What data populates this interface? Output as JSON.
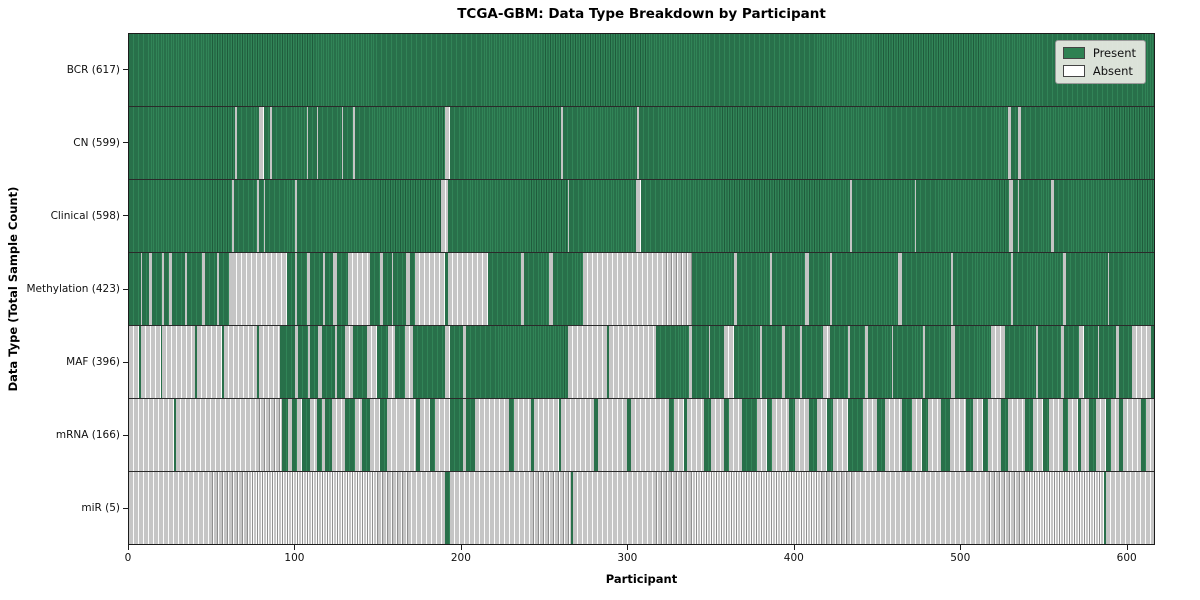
{
  "title": "TCGA-GBM: Data Type Breakdown by Participant",
  "axes": {
    "xlabel": "Participant",
    "ylabel": "Data Type (Total Sample Count)"
  },
  "legend": {
    "present_label": "Present",
    "absent_label": "Absent"
  },
  "colors": {
    "present_fill": "#318457",
    "present_stripe": "#1f5c3c",
    "absent_fill": "#fbfbfb",
    "absent_stripe": "#8f8f8f",
    "legend_bg": "#eaece5",
    "plot_border": "#1c1c1c"
  },
  "chart_data": {
    "type": "heatmap",
    "title": "TCGA-GBM: Data Type Breakdown by Participant",
    "xlabel": "Participant",
    "ylabel": "Data Type (Total Sample Count)",
    "xlim": [
      0,
      617
    ],
    "x_ticks": [
      0,
      100,
      200,
      300,
      400,
      500,
      600
    ],
    "n_participants": 617,
    "grid": false,
    "legend": [
      "Present",
      "Absent"
    ],
    "legend_position": "upper right",
    "cell_states": {
      "P": "Present",
      "A": "Absent"
    },
    "run_format": "[length, P|A] left-to-right per participant (approximate run-length encoding)",
    "rows": [
      {
        "label": "BCR (617)",
        "data_type": "BCR",
        "present_count": 617,
        "runs": [
          [
            617,
            "P"
          ]
        ]
      },
      {
        "label": "CN (599)",
        "data_type": "CN",
        "present_count": 599,
        "runs": [
          [
            64,
            "P"
          ],
          [
            1,
            "A"
          ],
          [
            13,
            "P"
          ],
          [
            3,
            "A"
          ],
          [
            4,
            "P"
          ],
          [
            1,
            "A"
          ],
          [
            21,
            "P"
          ],
          [
            1,
            "A"
          ],
          [
            5,
            "P"
          ],
          [
            1,
            "A"
          ],
          [
            14,
            "P"
          ],
          [
            1,
            "A"
          ],
          [
            6,
            "P"
          ],
          [
            1,
            "A"
          ],
          [
            54,
            "P"
          ],
          [
            3,
            "A"
          ],
          [
            67,
            "P"
          ],
          [
            1,
            "A"
          ],
          [
            45,
            "P"
          ],
          [
            1,
            "A"
          ],
          [
            222,
            "P"
          ],
          [
            2,
            "A"
          ],
          [
            4,
            "P"
          ],
          [
            2,
            "A"
          ],
          [
            80,
            "P"
          ]
        ]
      },
      {
        "label": "Clinical (598)",
        "data_type": "Clinical",
        "present_count": 598,
        "runs": [
          [
            62,
            "P"
          ],
          [
            1,
            "A"
          ],
          [
            14,
            "P"
          ],
          [
            1,
            "A"
          ],
          [
            3,
            "P"
          ],
          [
            1,
            "A"
          ],
          [
            18,
            "P"
          ],
          [
            1,
            "A"
          ],
          [
            87,
            "P"
          ],
          [
            4,
            "A"
          ],
          [
            72,
            "P"
          ],
          [
            1,
            "A"
          ],
          [
            40,
            "P"
          ],
          [
            3,
            "A"
          ],
          [
            126,
            "P"
          ],
          [
            1,
            "A"
          ],
          [
            38,
            "P"
          ],
          [
            1,
            "A"
          ],
          [
            56,
            "P"
          ],
          [
            2,
            "A"
          ],
          [
            3,
            "P"
          ],
          [
            1,
            "A"
          ],
          [
            19,
            "P"
          ],
          [
            2,
            "A"
          ],
          [
            60,
            "P"
          ]
        ]
      },
      {
        "label": "Methylation (423)",
        "data_type": "Methylation",
        "present_count": 423,
        "runs": [
          [
            7,
            "P"
          ],
          [
            1,
            "A"
          ],
          [
            4,
            "P"
          ],
          [
            2,
            "A"
          ],
          [
            6,
            "P"
          ],
          [
            1,
            "A"
          ],
          [
            3,
            "P"
          ],
          [
            2,
            "A"
          ],
          [
            8,
            "P"
          ],
          [
            1,
            "A"
          ],
          [
            9,
            "P"
          ],
          [
            2,
            "A"
          ],
          [
            7,
            "P"
          ],
          [
            1,
            "A"
          ],
          [
            6,
            "P"
          ],
          [
            2,
            "A"
          ],
          [
            33,
            "A"
          ],
          [
            5,
            "P"
          ],
          [
            1,
            "A"
          ],
          [
            6,
            "P"
          ],
          [
            2,
            "A"
          ],
          [
            8,
            "P"
          ],
          [
            1,
            "A"
          ],
          [
            5,
            "P"
          ],
          [
            2,
            "A"
          ],
          [
            7,
            "P"
          ],
          [
            13,
            "A"
          ],
          [
            6,
            "P"
          ],
          [
            2,
            "A"
          ],
          [
            5,
            "P"
          ],
          [
            1,
            "A"
          ],
          [
            8,
            "P"
          ],
          [
            2,
            "A"
          ],
          [
            3,
            "P"
          ],
          [
            18,
            "A"
          ],
          [
            2,
            "P"
          ],
          [
            24,
            "A"
          ],
          [
            20,
            "P"
          ],
          [
            2,
            "A"
          ],
          [
            15,
            "P"
          ],
          [
            2,
            "A"
          ],
          [
            18,
            "P"
          ],
          [
            66,
            "A"
          ],
          [
            25,
            "P"
          ],
          [
            2,
            "A"
          ],
          [
            20,
            "P"
          ],
          [
            1,
            "A"
          ],
          [
            20,
            "P"
          ],
          [
            2,
            "A"
          ],
          [
            13,
            "P"
          ],
          [
            1,
            "A"
          ],
          [
            40,
            "P"
          ],
          [
            2,
            "A"
          ],
          [
            30,
            "P"
          ],
          [
            1,
            "A"
          ],
          [
            35,
            "P"
          ],
          [
            1,
            "A"
          ],
          [
            30,
            "P"
          ],
          [
            2,
            "A"
          ],
          [
            25,
            "P"
          ],
          [
            1,
            "A"
          ],
          [
            27,
            "P"
          ]
        ]
      },
      {
        "label": "MAF (396)",
        "data_type": "MAF",
        "present_count": 396,
        "runs": [
          [
            6,
            "A"
          ],
          [
            1,
            "P"
          ],
          [
            12,
            "A"
          ],
          [
            1,
            "P"
          ],
          [
            20,
            "A"
          ],
          [
            1,
            "P"
          ],
          [
            15,
            "A"
          ],
          [
            1,
            "P"
          ],
          [
            20,
            "A"
          ],
          [
            1,
            "P"
          ],
          [
            13,
            "A"
          ],
          [
            1,
            "P"
          ],
          [
            8,
            "P"
          ],
          [
            2,
            "A"
          ],
          [
            6,
            "P"
          ],
          [
            1,
            "A"
          ],
          [
            5,
            "P"
          ],
          [
            2,
            "A"
          ],
          [
            8,
            "P"
          ],
          [
            1,
            "A"
          ],
          [
            5,
            "P"
          ],
          [
            5,
            "A"
          ],
          [
            8,
            "P"
          ],
          [
            6,
            "A"
          ],
          [
            7,
            "P"
          ],
          [
            4,
            "A"
          ],
          [
            6,
            "P"
          ],
          [
            5,
            "A"
          ],
          [
            9,
            "P"
          ],
          [
            10,
            "P"
          ],
          [
            3,
            "A"
          ],
          [
            8,
            "P"
          ],
          [
            2,
            "A"
          ],
          [
            9,
            "P"
          ],
          [
            52,
            "P"
          ],
          [
            24,
            "A"
          ],
          [
            1,
            "P"
          ],
          [
            28,
            "A"
          ],
          [
            20,
            "P"
          ],
          [
            2,
            "A"
          ],
          [
            10,
            "P"
          ],
          [
            1,
            "A"
          ],
          [
            8,
            "P"
          ],
          [
            6,
            "A"
          ],
          [
            16,
            "P"
          ],
          [
            1,
            "A"
          ],
          [
            12,
            "P"
          ],
          [
            2,
            "A"
          ],
          [
            9,
            "P"
          ],
          [
            1,
            "A"
          ],
          [
            13,
            "P"
          ],
          [
            4,
            "A"
          ],
          [
            11,
            "P"
          ],
          [
            1,
            "A"
          ],
          [
            9,
            "P"
          ],
          [
            2,
            "A"
          ],
          [
            14,
            "P"
          ],
          [
            1,
            "A"
          ],
          [
            18,
            "P"
          ],
          [
            1,
            "A"
          ],
          [
            16,
            "P"
          ],
          [
            2,
            "A"
          ],
          [
            22,
            "P"
          ],
          [
            8,
            "A"
          ],
          [
            19,
            "P"
          ],
          [
            1,
            "A"
          ],
          [
            14,
            "P"
          ],
          [
            2,
            "A"
          ],
          [
            9,
            "P"
          ],
          [
            3,
            "A"
          ],
          [
            8,
            "P"
          ],
          [
            1,
            "A"
          ],
          [
            10,
            "P"
          ],
          [
            2,
            "A"
          ],
          [
            8,
            "P"
          ],
          [
            11,
            "A"
          ],
          [
            2,
            "P"
          ]
        ]
      },
      {
        "label": "mRNA (166)",
        "data_type": "mRNA",
        "present_count": 166,
        "runs": [
          [
            27,
            "A"
          ],
          [
            1,
            "P"
          ],
          [
            64,
            "A"
          ],
          [
            4,
            "P"
          ],
          [
            2,
            "A"
          ],
          [
            3,
            "P"
          ],
          [
            3,
            "A"
          ],
          [
            5,
            "P"
          ],
          [
            4,
            "A"
          ],
          [
            3,
            "P"
          ],
          [
            2,
            "A"
          ],
          [
            4,
            "P"
          ],
          [
            8,
            "A"
          ],
          [
            6,
            "P"
          ],
          [
            4,
            "A"
          ],
          [
            5,
            "P"
          ],
          [
            6,
            "A"
          ],
          [
            4,
            "P"
          ],
          [
            8,
            "A"
          ],
          [
            10,
            "A"
          ],
          [
            2,
            "P"
          ],
          [
            6,
            "A"
          ],
          [
            3,
            "P"
          ],
          [
            9,
            "A"
          ],
          [
            8,
            "P"
          ],
          [
            2,
            "A"
          ],
          [
            5,
            "P"
          ],
          [
            9,
            "A"
          ],
          [
            12,
            "A"
          ],
          [
            3,
            "P"
          ],
          [
            10,
            "A"
          ],
          [
            2,
            "P"
          ],
          [
            15,
            "A"
          ],
          [
            1,
            "P"
          ],
          [
            20,
            "A"
          ],
          [
            2,
            "P"
          ],
          [
            18,
            "A"
          ],
          [
            2,
            "P"
          ],
          [
            15,
            "A"
          ],
          [
            8,
            "A"
          ],
          [
            3,
            "P"
          ],
          [
            6,
            "A"
          ],
          [
            2,
            "P"
          ],
          [
            10,
            "A"
          ],
          [
            4,
            "P"
          ],
          [
            8,
            "A"
          ],
          [
            3,
            "P"
          ],
          [
            8,
            "A"
          ],
          [
            9,
            "P"
          ],
          [
            6,
            "A"
          ],
          [
            3,
            "P"
          ],
          [
            10,
            "A"
          ],
          [
            4,
            "P"
          ],
          [
            8,
            "A"
          ],
          [
            5,
            "P"
          ],
          [
            6,
            "A"
          ],
          [
            4,
            "P"
          ],
          [
            9,
            "A"
          ],
          [
            9,
            "P"
          ],
          [
            8,
            "A"
          ],
          [
            5,
            "P"
          ],
          [
            10,
            "A"
          ],
          [
            6,
            "P"
          ],
          [
            6,
            "A"
          ],
          [
            4,
            "P"
          ],
          [
            8,
            "A"
          ],
          [
            5,
            "P"
          ],
          [
            10,
            "A"
          ],
          [
            4,
            "P"
          ],
          [
            6,
            "A"
          ],
          [
            3,
            "P"
          ],
          [
            8,
            "A"
          ],
          [
            4,
            "P"
          ],
          [
            10,
            "A"
          ],
          [
            5,
            "P"
          ],
          [
            6,
            "A"
          ],
          [
            4,
            "P"
          ],
          [
            8,
            "A"
          ],
          [
            3,
            "P"
          ],
          [
            6,
            "A"
          ],
          [
            2,
            "P"
          ],
          [
            5,
            "A"
          ],
          [
            4,
            "P"
          ],
          [
            6,
            "A"
          ],
          [
            3,
            "P"
          ],
          [
            5,
            "A"
          ],
          [
            2,
            "P"
          ],
          [
            11,
            "A"
          ],
          [
            3,
            "P"
          ],
          [
            5,
            "A"
          ]
        ]
      },
      {
        "label": "miR (5)",
        "data_type": "miR",
        "present_count": 5,
        "runs": [
          [
            190,
            "A"
          ],
          [
            3,
            "P"
          ],
          [
            73,
            "A"
          ],
          [
            1,
            "P"
          ],
          [
            320,
            "A"
          ],
          [
            1,
            "P"
          ],
          [
            29,
            "A"
          ]
        ]
      }
    ]
  }
}
